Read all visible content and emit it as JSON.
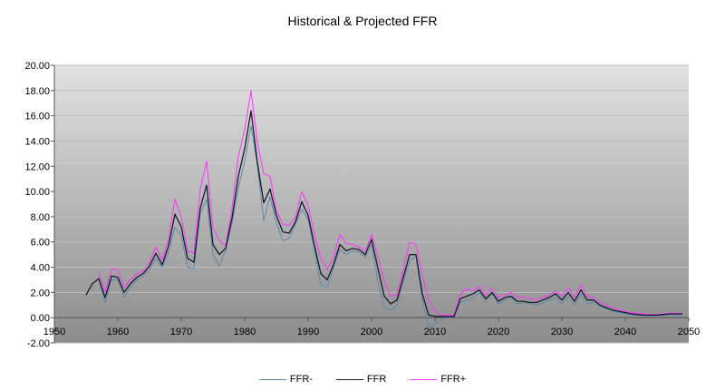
{
  "chart_data": {
    "type": "line",
    "title": "Historical & Projected FFR",
    "xlabel": "",
    "ylabel": "",
    "xlim": [
      1950,
      2050
    ],
    "ylim": [
      -2,
      20
    ],
    "x_ticks": [
      "1950",
      "1960",
      "1970",
      "1980",
      "1990",
      "2000",
      "2010",
      "2020",
      "2030",
      "2040",
      "2050"
    ],
    "y_ticks": [
      "-2.00",
      "0.00",
      "2.00",
      "4.00",
      "6.00",
      "8.00",
      "10.00",
      "12.00",
      "14.00",
      "16.00",
      "18.00",
      "20.00"
    ],
    "grid": true,
    "legend_position": "bottom",
    "plot_background": "gradient grey",
    "series": [
      {
        "name": "FFR-",
        "color": "#5b8aa8",
        "x": [
          1955,
          1956,
          1957,
          1958,
          1959,
          1960,
          1961,
          1962,
          1963,
          1964,
          1965,
          1966,
          1967,
          1968,
          1969,
          1970,
          1971,
          1972,
          1973,
          1974,
          1975,
          1976,
          1977,
          1978,
          1979,
          1980,
          1981,
          1982,
          1983,
          1984,
          1985,
          1986,
          1987,
          1988,
          1989,
          1990,
          1991,
          1992,
          1993,
          1994,
          1995,
          1996,
          1997,
          1998,
          1999,
          2000,
          2001,
          2002,
          2003,
          2004,
          2005,
          2006,
          2007,
          2008,
          2009,
          2010,
          2011,
          2012,
          2013,
          2014,
          2015,
          2016,
          2017,
          2018,
          2019,
          2020,
          2021,
          2022,
          2023,
          2024,
          2025,
          2026,
          2027,
          2028,
          2029,
          2030,
          2031,
          2032,
          2033,
          2034,
          2035,
          2036,
          2037,
          2038,
          2039,
          2040,
          2041,
          2042,
          2043,
          2044,
          2045,
          2046,
          2047,
          2048,
          2049
        ],
        "values": [
          1.8,
          2.7,
          3.1,
          1.2,
          3.0,
          3.0,
          1.6,
          2.4,
          3.0,
          3.3,
          3.8,
          4.7,
          4.0,
          5.2,
          7.2,
          6.5,
          4.0,
          3.9,
          8.3,
          9.4,
          5.0,
          4.1,
          5.4,
          7.5,
          10.3,
          12.4,
          15.2,
          12.1,
          7.7,
          9.6,
          7.5,
          6.1,
          6.3,
          7.4,
          8.6,
          7.8,
          5.4,
          2.6,
          2.4,
          4.0,
          5.4,
          5.0,
          5.3,
          5.2,
          4.8,
          5.8,
          2.8,
          0.8,
          0.6,
          1.0,
          2.8,
          4.5,
          4.9,
          1.4,
          -0.8,
          -0.5,
          -0.1,
          0.0,
          0.1,
          1.2,
          1.4,
          1.5,
          2.0,
          1.3,
          1.9,
          1.1,
          1.4,
          1.6,
          1.1,
          1.2,
          1.1,
          1.0,
          1.2,
          1.4,
          1.6,
          1.1,
          1.7,
          1.0,
          1.9,
          1.1,
          1.2,
          0.9,
          0.7,
          0.5,
          0.4,
          0.3,
          0.2,
          0.2,
          0.15,
          0.15,
          0.15,
          0.2,
          0.2,
          0.25,
          0.2
        ]
      },
      {
        "name": "FFR",
        "color": "#1a1a2e",
        "x": [
          1955,
          1956,
          1957,
          1958,
          1959,
          1960,
          1961,
          1962,
          1963,
          1964,
          1965,
          1966,
          1967,
          1968,
          1969,
          1970,
          1971,
          1972,
          1973,
          1974,
          1975,
          1976,
          1977,
          1978,
          1979,
          1980,
          1981,
          1982,
          1983,
          1984,
          1985,
          1986,
          1987,
          1988,
          1989,
          1990,
          1991,
          1992,
          1993,
          1994,
          1995,
          1996,
          1997,
          1998,
          1999,
          2000,
          2001,
          2002,
          2003,
          2004,
          2005,
          2006,
          2007,
          2008,
          2009,
          2010,
          2011,
          2012,
          2013,
          2014,
          2015,
          2016,
          2017,
          2018,
          2019,
          2020,
          2021,
          2022,
          2023,
          2024,
          2025,
          2026,
          2027,
          2028,
          2029,
          2030,
          2031,
          2032,
          2033,
          2034,
          2035,
          2036,
          2037,
          2038,
          2039,
          2040,
          2041,
          2042,
          2043,
          2044,
          2045,
          2046,
          2047,
          2048,
          2049
        ],
        "values": [
          1.8,
          2.7,
          3.1,
          1.6,
          3.3,
          3.2,
          2.0,
          2.7,
          3.2,
          3.5,
          4.1,
          5.1,
          4.2,
          5.7,
          8.2,
          7.2,
          4.7,
          4.4,
          8.7,
          10.5,
          5.8,
          5.0,
          5.5,
          7.9,
          11.2,
          13.4,
          16.4,
          12.3,
          9.1,
          10.2,
          8.1,
          6.8,
          6.7,
          7.6,
          9.2,
          8.1,
          5.7,
          3.5,
          3.0,
          4.2,
          5.8,
          5.3,
          5.5,
          5.4,
          5.0,
          6.2,
          3.9,
          1.7,
          1.1,
          1.4,
          3.2,
          5.0,
          5.0,
          1.9,
          0.2,
          0.1,
          0.1,
          0.1,
          0.1,
          1.5,
          1.7,
          1.9,
          2.2,
          1.5,
          2.0,
          1.3,
          1.6,
          1.7,
          1.3,
          1.3,
          1.2,
          1.2,
          1.4,
          1.6,
          1.9,
          1.4,
          2.0,
          1.3,
          2.2,
          1.4,
          1.4,
          1.0,
          0.8,
          0.6,
          0.5,
          0.4,
          0.3,
          0.25,
          0.2,
          0.2,
          0.2,
          0.25,
          0.3,
          0.3,
          0.3
        ]
      },
      {
        "name": "FFR+",
        "color": "#ff33ff",
        "x": [
          1957,
          1958,
          1959,
          1960,
          1961,
          1962,
          1963,
          1964,
          1965,
          1966,
          1967,
          1968,
          1969,
          1970,
          1971,
          1972,
          1973,
          1974,
          1975,
          1976,
          1977,
          1978,
          1979,
          1980,
          1981,
          1982,
          1983,
          1984,
          1985,
          1986,
          1987,
          1988,
          1989,
          1990,
          1991,
          1992,
          1993,
          1994,
          1995,
          1996,
          1997,
          1998,
          1999,
          2000,
          2001,
          2002,
          2003,
          2004,
          2005,
          2006,
          2007,
          2008,
          2009,
          2010,
          2011,
          2012,
          2013,
          2014,
          2015,
          2016,
          2017,
          2018,
          2019,
          2020,
          2021,
          2022,
          2023,
          2024,
          2025,
          2026,
          2027,
          2028,
          2029,
          2030,
          2031,
          2032,
          2033,
          2034,
          2035,
          2036,
          2037,
          2038,
          2039,
          2040,
          2041,
          2042,
          2043,
          2044,
          2045,
          2046,
          2047,
          2048,
          2049
        ],
        "values": [
          3.5,
          2.0,
          3.9,
          3.8,
          2.4,
          3.0,
          3.5,
          3.7,
          4.4,
          5.6,
          4.6,
          6.2,
          9.4,
          8.0,
          5.3,
          5.1,
          10.2,
          12.4,
          7.1,
          6.1,
          5.7,
          8.6,
          12.8,
          14.9,
          18.0,
          13.9,
          11.4,
          11.2,
          8.5,
          7.4,
          7.3,
          8.0,
          10.0,
          8.9,
          6.5,
          4.7,
          3.8,
          4.8,
          6.6,
          5.9,
          5.8,
          5.6,
          5.3,
          6.6,
          4.8,
          2.9,
          1.7,
          1.8,
          3.8,
          6.0,
          5.8,
          3.4,
          1.4,
          0.5,
          0.2,
          0.2,
          0.2,
          1.9,
          2.3,
          2.1,
          2.5,
          1.8,
          2.3,
          1.6,
          1.8,
          2.0,
          1.6,
          1.6,
          1.5,
          1.4,
          1.6,
          1.8,
          2.1,
          1.7,
          2.4,
          1.6,
          2.6,
          1.7,
          1.6,
          1.2,
          1.0,
          0.8,
          0.6,
          0.5,
          0.4,
          0.35,
          0.3,
          0.25,
          0.25,
          0.3,
          0.35,
          0.35,
          0.35
        ]
      }
    ]
  }
}
